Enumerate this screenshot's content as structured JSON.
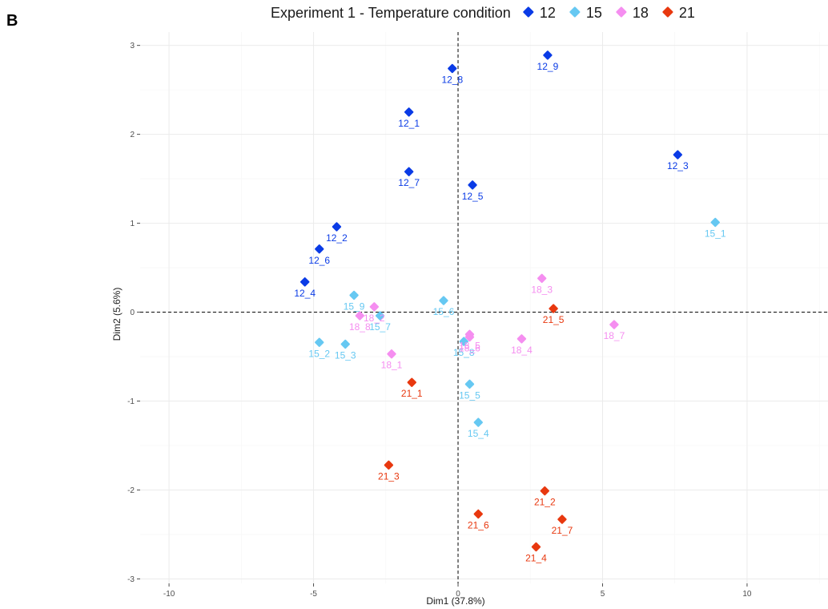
{
  "panel_label": "B",
  "colors": {
    "12": "#0a3be6",
    "15": "#66c8f2",
    "18": "#f58ef0",
    "21": "#e8380f"
  },
  "chart_data": {
    "type": "scatter",
    "title": "",
    "xlabel": "Dim1 (37.8%)",
    "ylabel": "Dim2 (5.6%)",
    "xlim": [
      -11.0,
      12.8
    ],
    "ylim": [
      -3.05,
      3.15
    ],
    "x_ticks": [
      -10,
      -5,
      0,
      5,
      10
    ],
    "x_tick_labels": [
      "-10",
      "-5",
      "0",
      "5",
      "10"
    ],
    "y_ticks": [
      -3,
      -2,
      -1,
      0,
      1,
      2,
      3
    ],
    "y_tick_labels": [
      "-3",
      "-2",
      "-1",
      "0",
      "1",
      "2",
      "3"
    ],
    "grid": true,
    "reference_lines": {
      "x": 0,
      "y": 0
    },
    "legend": {
      "title": "Experiment 1 - Temperature condition",
      "position": "top",
      "entries": [
        "12",
        "15",
        "18",
        "21"
      ]
    },
    "series": [
      {
        "name": "12",
        "points": [
          {
            "label": "12_1",
            "x": -1.7,
            "y": 2.25
          },
          {
            "label": "12_2",
            "x": -4.2,
            "y": 0.96
          },
          {
            "label": "12_3",
            "x": 7.6,
            "y": 1.77
          },
          {
            "label": "12_4",
            "x": -5.3,
            "y": 0.34
          },
          {
            "label": "12_5",
            "x": 0.5,
            "y": 1.43
          },
          {
            "label": "12_6",
            "x": -4.8,
            "y": 0.71
          },
          {
            "label": "12_7",
            "x": -1.7,
            "y": 1.58
          },
          {
            "label": "12_8",
            "x": -0.2,
            "y": 2.74
          },
          {
            "label": "12_9",
            "x": 3.1,
            "y": 2.89
          }
        ]
      },
      {
        "name": "15",
        "points": [
          {
            "label": "15_1",
            "x": 8.9,
            "y": 1.01
          },
          {
            "label": "15_2",
            "x": -4.8,
            "y": -0.34
          },
          {
            "label": "15_3",
            "x": -3.9,
            "y": -0.36
          },
          {
            "label": "15_4",
            "x": 0.7,
            "y": -1.24
          },
          {
            "label": "15_5",
            "x": 0.4,
            "y": -0.81
          },
          {
            "label": "15_6",
            "x": -0.5,
            "y": 0.13
          },
          {
            "label": "15_7",
            "x": -2.7,
            "y": -0.04
          },
          {
            "label": "15_8",
            "x": 0.2,
            "y": -0.33
          },
          {
            "label": "15_9",
            "x": -3.6,
            "y": 0.19
          }
        ]
      },
      {
        "name": "18",
        "points": [
          {
            "label": "18_1",
            "x": -2.3,
            "y": -0.47
          },
          {
            "label": "18_2",
            "x": -2.9,
            "y": 0.06
          },
          {
            "label": "18_3",
            "x": 2.9,
            "y": 0.38
          },
          {
            "label": "18_4",
            "x": 2.2,
            "y": -0.3
          },
          {
            "label": "18_5",
            "x": 0.4,
            "y": -0.25
          },
          {
            "label": "18_6",
            "x": 0.4,
            "y": -0.28
          },
          {
            "label": "18_7",
            "x": 5.4,
            "y": -0.14
          },
          {
            "label": "18_8",
            "x": -3.4,
            "y": -0.04
          }
        ]
      },
      {
        "name": "21",
        "points": [
          {
            "label": "21_1",
            "x": -1.6,
            "y": -0.79
          },
          {
            "label": "21_2",
            "x": 3.0,
            "y": -2.01
          },
          {
            "label": "21_3",
            "x": -2.4,
            "y": -1.72
          },
          {
            "label": "21_4",
            "x": 2.7,
            "y": -2.64
          },
          {
            "label": "21_5",
            "x": 3.3,
            "y": 0.04
          },
          {
            "label": "21_6",
            "x": 0.7,
            "y": -2.27
          },
          {
            "label": "21_7",
            "x": 3.6,
            "y": -2.33
          }
        ]
      }
    ]
  }
}
